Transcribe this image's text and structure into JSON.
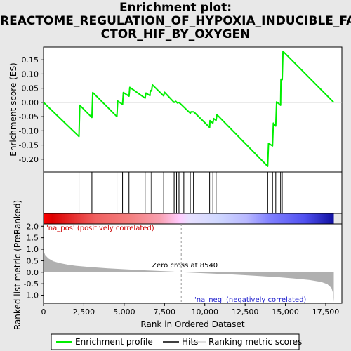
{
  "title_lines": [
    "Enrichment plot:",
    "REACTOME_REGULATION_OF_HYPOXIA_INDUCIBLE_FA",
    "CTOR_HIF_BY_OXYGEN"
  ],
  "colors": {
    "es_line": "#00ee00",
    "hits": "#000000",
    "metric_fill": "#b0b0b0",
    "pos_label": "#cc0000",
    "neg_label": "#1a1acc",
    "zero_line": "#999999"
  },
  "chart_data": {
    "type": "line",
    "es_panel": {
      "ylabel": "Enrichment score (ES)",
      "ylim": [
        -0.245,
        0.195
      ],
      "yticks": [
        0.15,
        0.1,
        0.05,
        0.0,
        -0.05,
        -0.1,
        -0.15,
        -0.2
      ],
      "ytick_labels": [
        "0.15",
        "0.10",
        "0.05",
        "0.00",
        "-0.05",
        "-0.10",
        "-0.15",
        "-0.20"
      ],
      "x": [
        0,
        2200,
        2250,
        3000,
        3050,
        4550,
        4600,
        4900,
        4950,
        5300,
        5350,
        6300,
        6350,
        6600,
        6620,
        6700,
        6750,
        7450,
        7500,
        8100,
        8200,
        8300,
        8400,
        9100,
        9150,
        9300,
        9350,
        10300,
        10320,
        10500,
        10550,
        10700,
        10750,
        13900,
        13950,
        14200,
        14250,
        14400,
        14450,
        14700,
        14720,
        14800,
        14850,
        18000
      ],
      "y": [
        0.0,
        -0.12,
        -0.01,
        -0.053,
        0.035,
        -0.05,
        0.005,
        -0.007,
        0.035,
        0.022,
        0.053,
        0.015,
        0.033,
        0.024,
        0.042,
        0.04,
        0.062,
        0.023,
        0.036,
        0.0,
        0.004,
        -0.002,
        0.0,
        -0.038,
        -0.033,
        -0.033,
        -0.035,
        -0.088,
        -0.064,
        -0.073,
        -0.057,
        -0.063,
        -0.043,
        -0.225,
        -0.144,
        -0.153,
        -0.073,
        -0.083,
        0.002,
        -0.01,
        0.082,
        0.08,
        0.18,
        0.0
      ]
    },
    "hits": [
      2200,
      3000,
      4550,
      4900,
      5300,
      6300,
      6600,
      6700,
      7450,
      8100,
      8250,
      8400,
      8700,
      9100,
      9300,
      10300,
      10500,
      10700,
      13900,
      14200,
      14400,
      14700,
      14800
    ],
    "metric_panel": {
      "ylabel": "Ranked list metric (PreRanked)",
      "ylim": [
        -1.35,
        2.1
      ],
      "yticks": [
        2.0,
        1.5,
        1.0,
        0.5,
        0.0,
        -0.5,
        -1.0
      ],
      "ytick_labels": [
        "2.0",
        "1.5",
        "1.0",
        "0.5",
        "0.0",
        "-0.5",
        "-1.0"
      ],
      "x": [
        0,
        100,
        300,
        600,
        1000,
        1500,
        2000,
        3000,
        4000,
        5000,
        6000,
        7000,
        8000,
        8540,
        9500,
        10500,
        11500,
        12500,
        13500,
        14500,
        15500,
        16500,
        17200,
        17600,
        17850,
        17950,
        18000
      ],
      "y": [
        0.95,
        0.75,
        0.6,
        0.48,
        0.4,
        0.33,
        0.28,
        0.22,
        0.17,
        0.13,
        0.09,
        0.06,
        0.03,
        0.0,
        -0.03,
        -0.06,
        -0.09,
        -0.13,
        -0.17,
        -0.21,
        -0.27,
        -0.34,
        -0.42,
        -0.52,
        -0.68,
        -0.9,
        -1.3
      ],
      "zero_cross_label": "Zero cross at 8540",
      "zero_cross": 8540,
      "pos_label": "'na_pos' (positively correlated)",
      "neg_label": "'na_neg' (negatively correlated)"
    },
    "xlabel": "Rank in Ordered Dataset",
    "xlim": [
      0,
      18500
    ],
    "xticks": [
      0,
      2500,
      5000,
      7500,
      10000,
      12500,
      15000,
      17500
    ],
    "xtick_labels": [
      "0",
      "2,500",
      "5,000",
      "7,500",
      "10,000",
      "12,500",
      "15,000",
      "17,500"
    ],
    "legend": {
      "items": [
        "Enrichment profile",
        "Hits",
        "Ranking metric scores"
      ],
      "placement": "bottom"
    }
  }
}
